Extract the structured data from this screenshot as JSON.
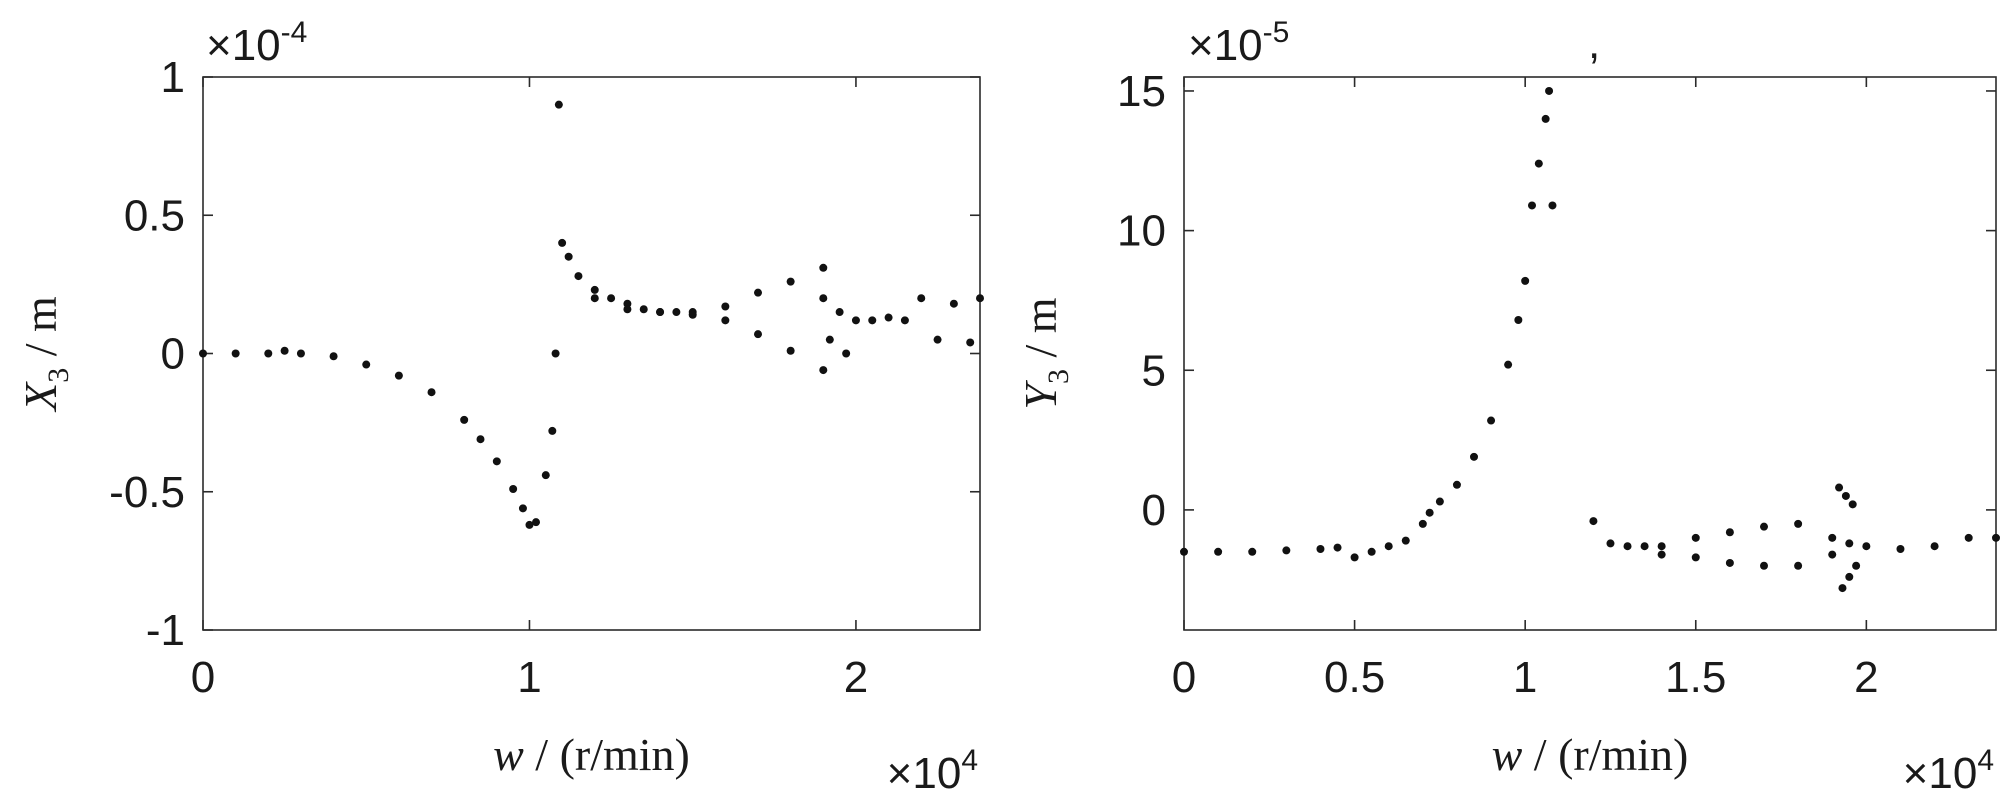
{
  "chart_data": [
    {
      "type": "scatter",
      "ylabel_var": "X",
      "ylabel_sub": "3",
      "ylabel_unit": " / m",
      "xlabel_var": "w",
      "xlabel_unit": " / (r/min)",
      "x_exponent_base": "×10",
      "x_exponent_power": "4",
      "y_exponent_base": "×10",
      "y_exponent_power": "-4",
      "xlim": [
        0,
        2.38
      ],
      "ylim": [
        -1,
        1
      ],
      "xticks": [
        0,
        1,
        2
      ],
      "xtick_labels": [
        "0",
        "1",
        "2"
      ],
      "yticks": [
        -1,
        -0.5,
        0,
        0.5,
        1
      ],
      "ytick_labels": [
        "-1",
        "-0.5",
        "0",
        "0.5",
        "1"
      ],
      "series": [
        {
          "x": [
            0,
            0.1,
            0.2,
            0.25,
            0.3,
            0.4,
            0.5,
            0.6,
            0.7,
            0.8,
            0.85,
            0.9,
            0.95,
            0.98,
            1.0,
            1.02,
            1.05,
            1.07,
            1.08,
            1.09,
            1.1,
            1.12,
            1.15,
            1.2,
            1.25,
            1.3,
            1.35,
            1.4,
            1.45,
            1.5,
            1.6,
            1.7,
            1.8,
            1.9
          ],
          "y": [
            0,
            0,
            0,
            0.01,
            0,
            -0.01,
            -0.04,
            -0.08,
            -0.14,
            -0.24,
            -0.31,
            -0.39,
            -0.49,
            -0.56,
            -0.62,
            -0.61,
            -0.44,
            -0.28,
            0,
            0.9,
            0.4,
            0.35,
            0.28,
            0.23,
            0.2,
            0.18,
            0.16,
            0.15,
            0.15,
            0.15,
            0.17,
            0.22,
            0.26,
            0.31
          ]
        },
        {
          "x": [
            1.2,
            1.3,
            1.4,
            1.5,
            1.6,
            1.7,
            1.8,
            1.9
          ],
          "y": [
            0.2,
            0.16,
            0.15,
            0.14,
            0.12,
            0.07,
            0.01,
            -0.06
          ]
        },
        {
          "x": [
            1.9,
            1.92,
            1.95,
            1.97,
            2.0,
            2.05,
            2.1,
            2.15,
            2.2,
            2.25,
            2.3,
            2.35,
            2.38
          ],
          "y": [
            0.2,
            0.05,
            0.15,
            0,
            0.12,
            0.12,
            0.13,
            0.12,
            0.2,
            0.05,
            0.18,
            0.04,
            0.2
          ]
        }
      ]
    },
    {
      "type": "scatter",
      "ylabel_var": "Y",
      "ylabel_sub": "3",
      "ylabel_unit": " / m",
      "xlabel_var": "w",
      "xlabel_unit": " / (r/min)",
      "x_exponent_base": "×10",
      "x_exponent_power": "4",
      "y_exponent_base": "×10",
      "y_exponent_power": "-5",
      "annotation": ",",
      "xlim": [
        0,
        2.38
      ],
      "ylim": [
        -4.3,
        15.5
      ],
      "xticks": [
        0,
        0.5,
        1,
        1.5,
        2
      ],
      "xtick_labels": [
        "0",
        "0.5",
        "1",
        "1.5",
        "2"
      ],
      "yticks": [
        0,
        5,
        10,
        15
      ],
      "ytick_labels": [
        "0",
        "5",
        "10",
        "15"
      ],
      "series": [
        {
          "x": [
            0,
            0.1,
            0.2,
            0.3,
            0.4,
            0.45,
            0.5,
            0.55,
            0.6,
            0.65,
            0.7,
            0.72,
            0.75,
            0.8,
            0.85,
            0.9,
            0.95,
            0.98,
            1.0,
            1.02,
            1.04,
            1.06,
            1.07,
            1.08
          ],
          "y": [
            -1.5,
            -1.5,
            -1.5,
            -1.45,
            -1.4,
            -1.35,
            -1.7,
            -1.5,
            -1.3,
            -1.1,
            -0.5,
            -0.1,
            0.3,
            0.9,
            1.9,
            3.2,
            5.2,
            6.8,
            8.2,
            10.9,
            12.4,
            14,
            15,
            10.9
          ]
        },
        {
          "x": [
            1.2,
            1.25,
            1.3,
            1.35,
            1.4,
            1.5,
            1.6,
            1.7,
            1.8,
            1.9,
            1.95,
            2.0,
            2.1,
            2.2,
            2.3,
            2.38
          ],
          "y": [
            -0.4,
            -1.2,
            -1.3,
            -1.3,
            -1.3,
            -1.0,
            -0.8,
            -0.6,
            -0.5,
            -1.0,
            -1.2,
            -1.3,
            -1.4,
            -1.3,
            -1.0,
            -1.0
          ]
        },
        {
          "x": [
            1.4,
            1.5,
            1.6,
            1.7,
            1.8,
            1.9
          ],
          "y": [
            -1.6,
            -1.7,
            -1.9,
            -2.0,
            -2.0,
            -1.6
          ]
        },
        {
          "x": [
            1.92,
            1.93,
            1.94,
            1.95,
            1.96,
            1.97
          ],
          "y": [
            0.8,
            -2.8,
            0.5,
            -2.4,
            0.2,
            -2.0
          ]
        }
      ]
    }
  ]
}
